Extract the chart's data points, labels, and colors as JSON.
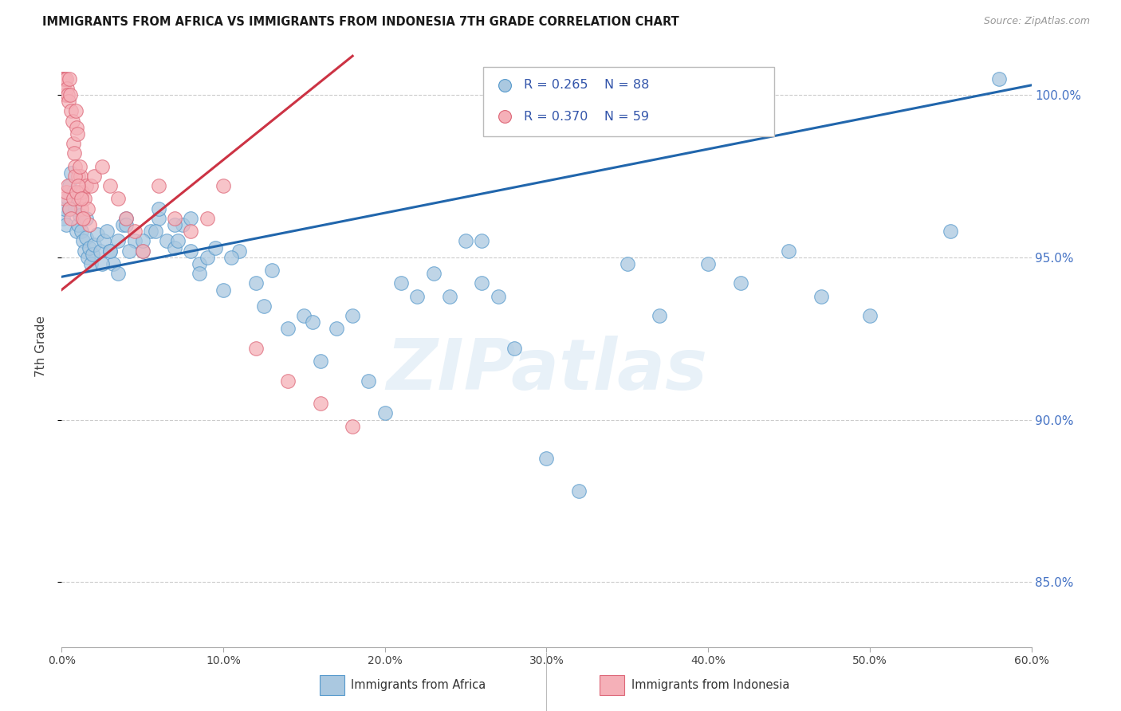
{
  "title": "IMMIGRANTS FROM AFRICA VS IMMIGRANTS FROM INDONESIA 7TH GRADE CORRELATION CHART",
  "source": "Source: ZipAtlas.com",
  "ylabel": "7th Grade",
  "legend_label_blue": "Immigrants from Africa",
  "legend_label_pink": "Immigrants from Indonesia",
  "R_blue": 0.265,
  "N_blue": 88,
  "R_pink": 0.37,
  "N_pink": 59,
  "x_min": 0.0,
  "x_max": 60.0,
  "y_min": 83.0,
  "y_max": 101.5,
  "y_ticks": [
    85.0,
    90.0,
    95.0,
    100.0
  ],
  "x_ticks": [
    0.0,
    10.0,
    20.0,
    30.0,
    40.0,
    50.0,
    60.0
  ],
  "color_blue": "#aac8e0",
  "color_blue_line": "#2166ac",
  "color_blue_edge": "#5599cc",
  "color_pink": "#f5b0b8",
  "color_pink_line": "#cc3344",
  "color_pink_edge": "#dd6677",
  "background": "#ffffff",
  "watermark": "ZIPatlas",
  "blue_line_x0": 0.0,
  "blue_line_y0": 94.4,
  "blue_line_x1": 60.0,
  "blue_line_y1": 100.3,
  "pink_line_x0": 0.0,
  "pink_line_y0": 94.0,
  "pink_line_x1": 18.0,
  "pink_line_y1": 101.2,
  "blue_x": [
    0.1,
    0.2,
    0.3,
    0.4,
    0.5,
    0.6,
    0.7,
    0.8,
    0.9,
    1.0,
    1.1,
    1.2,
    1.3,
    1.4,
    1.5,
    1.6,
    1.7,
    1.8,
    1.9,
    2.0,
    2.2,
    2.4,
    2.6,
    2.8,
    3.0,
    3.2,
    3.5,
    3.8,
    4.0,
    4.5,
    5.0,
    5.5,
    6.0,
    6.5,
    7.0,
    7.5,
    8.0,
    8.5,
    9.0,
    9.5,
    10.0,
    11.0,
    12.0,
    13.0,
    14.0,
    15.0,
    16.0,
    17.0,
    18.0,
    19.0,
    20.0,
    21.0,
    22.0,
    23.0,
    24.0,
    25.0,
    26.0,
    27.0,
    28.0,
    30.0,
    32.0,
    35.0,
    37.0,
    40.0,
    42.0,
    45.0,
    47.0,
    50.0,
    55.0,
    58.0,
    3.0,
    4.0,
    5.0,
    6.0,
    7.0,
    8.0,
    2.5,
    1.5,
    0.5,
    26.0,
    3.5,
    4.2,
    5.8,
    7.2,
    8.5,
    10.5,
    12.5,
    15.5
  ],
  "blue_y": [
    96.2,
    96.5,
    96.0,
    96.8,
    97.2,
    97.6,
    97.0,
    96.5,
    95.8,
    96.0,
    96.3,
    95.8,
    95.5,
    95.2,
    95.6,
    95.0,
    95.3,
    94.8,
    95.1,
    95.4,
    95.7,
    95.2,
    95.5,
    95.8,
    95.2,
    94.8,
    95.5,
    96.0,
    96.2,
    95.5,
    95.2,
    95.8,
    96.2,
    95.5,
    95.3,
    96.0,
    95.2,
    94.8,
    95.0,
    95.3,
    94.0,
    95.2,
    94.2,
    94.6,
    92.8,
    93.2,
    91.8,
    92.8,
    93.2,
    91.2,
    90.2,
    94.2,
    93.8,
    94.5,
    93.8,
    95.5,
    94.2,
    93.8,
    92.2,
    88.8,
    87.8,
    94.8,
    93.2,
    94.8,
    94.2,
    95.2,
    93.8,
    93.2,
    95.8,
    100.5,
    95.2,
    96.0,
    95.5,
    96.5,
    96.0,
    96.2,
    94.8,
    96.2,
    96.5,
    95.5,
    94.5,
    95.2,
    95.8,
    95.5,
    94.5,
    95.0,
    93.5,
    93.0
  ],
  "pink_x": [
    0.05,
    0.1,
    0.15,
    0.2,
    0.25,
    0.3,
    0.35,
    0.4,
    0.45,
    0.5,
    0.55,
    0.6,
    0.65,
    0.7,
    0.75,
    0.8,
    0.85,
    0.9,
    0.95,
    1.0,
    1.05,
    1.1,
    1.15,
    1.2,
    1.25,
    1.3,
    1.4,
    1.5,
    1.6,
    1.7,
    1.8,
    2.0,
    2.5,
    3.0,
    3.5,
    4.0,
    4.5,
    5.0,
    6.0,
    7.0,
    8.0,
    9.0,
    10.0,
    12.0,
    14.0,
    16.0,
    18.0,
    0.2,
    0.3,
    0.4,
    0.5,
    0.6,
    0.7,
    0.8,
    0.9,
    1.0,
    1.1,
    1.2,
    1.3
  ],
  "pink_y": [
    100.5,
    100.5,
    100.3,
    100.5,
    100.0,
    100.5,
    100.2,
    100.0,
    99.8,
    100.5,
    100.0,
    99.5,
    99.2,
    98.5,
    98.2,
    97.8,
    99.5,
    99.0,
    98.8,
    97.5,
    96.8,
    97.0,
    97.5,
    96.5,
    97.0,
    96.2,
    96.8,
    97.2,
    96.5,
    96.0,
    97.2,
    97.5,
    97.8,
    97.2,
    96.8,
    96.2,
    95.8,
    95.2,
    97.2,
    96.2,
    95.8,
    96.2,
    97.2,
    92.2,
    91.2,
    90.5,
    89.8,
    96.8,
    97.0,
    97.2,
    96.5,
    96.2,
    96.8,
    97.5,
    97.0,
    97.2,
    97.8,
    96.8,
    96.2
  ]
}
